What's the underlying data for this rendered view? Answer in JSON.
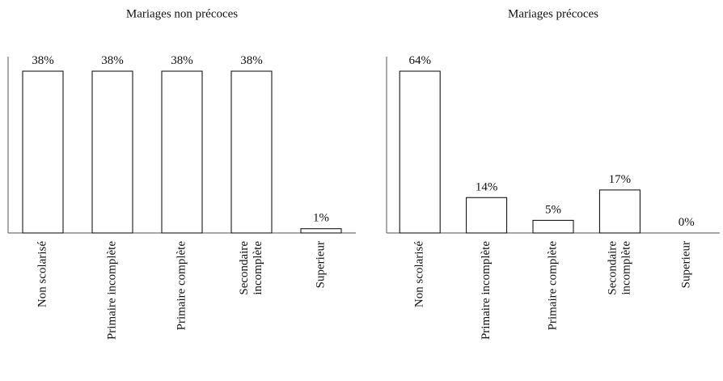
{
  "chart_data": [
    {
      "type": "bar",
      "title": "Mariages non précoces",
      "categories": [
        "Non scolarisé",
        "Primaire incomplète",
        "Primaire complète",
        "Secondaire incomplète",
        "Superieur"
      ],
      "values": [
        38,
        38,
        38,
        38,
        1
      ],
      "value_labels": [
        "38%",
        "38%",
        "38%",
        "38%",
        "1%"
      ],
      "color": "#ffffff",
      "edgecolor": "#000000"
    },
    {
      "type": "bar",
      "title": "Mariages précoces",
      "categories": [
        "Non scolarisé",
        "Primaire incomplète",
        "Primaire complète",
        "Secondaire incomplète",
        "Superieur"
      ],
      "values": [
        64,
        14,
        5,
        17,
        0
      ],
      "value_labels": [
        "64%",
        "14%",
        "5%",
        "17%",
        "0%"
      ],
      "color": "#ffffff",
      "edgecolor": "#000000"
    }
  ]
}
